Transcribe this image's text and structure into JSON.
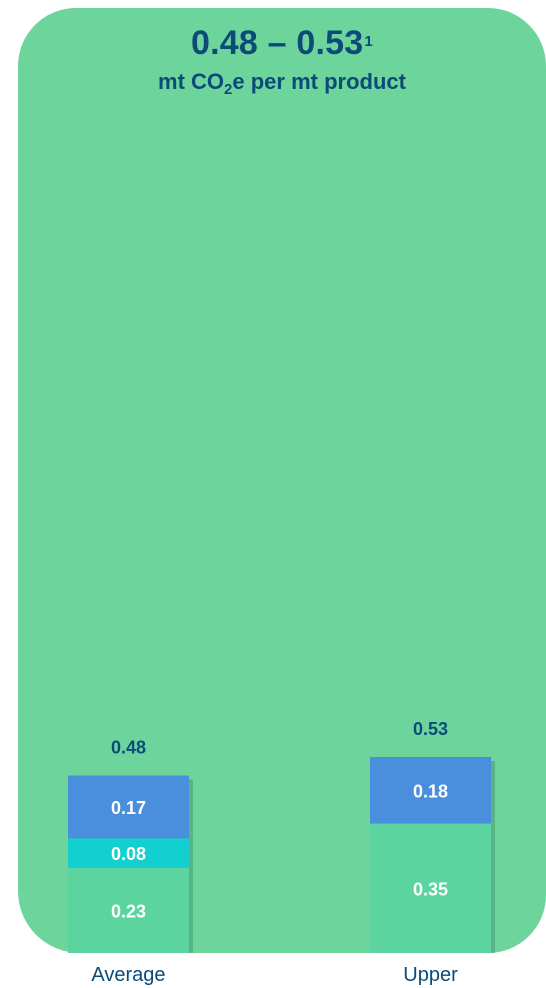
{
  "title": {
    "range": "0.48 – 0.53",
    "footnote": "1",
    "unit_pre": "mt CO",
    "unit_sub": "2",
    "unit_post": "e per mt product"
  },
  "colors": {
    "background_panel": "#6dd49c",
    "title_text": "#0c4b78",
    "segment_base": "#5bd4a0",
    "segment_mid": "#13cfd0",
    "segment_top": "#4a8fdc",
    "segment_label": "#ffffff",
    "axis_label": "#0c4b78"
  },
  "chart_data": {
    "type": "bar",
    "stacked": true,
    "categories": [
      "Average",
      "Upper"
    ],
    "series": [
      {
        "values": [
          0.23,
          0.35
        ],
        "color": "#5bd4a0"
      },
      {
        "values": [
          0.08,
          0
        ],
        "color": "#13cfd0"
      },
      {
        "values": [
          0.17,
          0.18
        ],
        "color": "#4a8fdc"
      }
    ],
    "totals": [
      0.48,
      0.53
    ],
    "title": "0.48 – 0.53",
    "ylim": [
      0,
      0.53
    ],
    "grid": false
  }
}
